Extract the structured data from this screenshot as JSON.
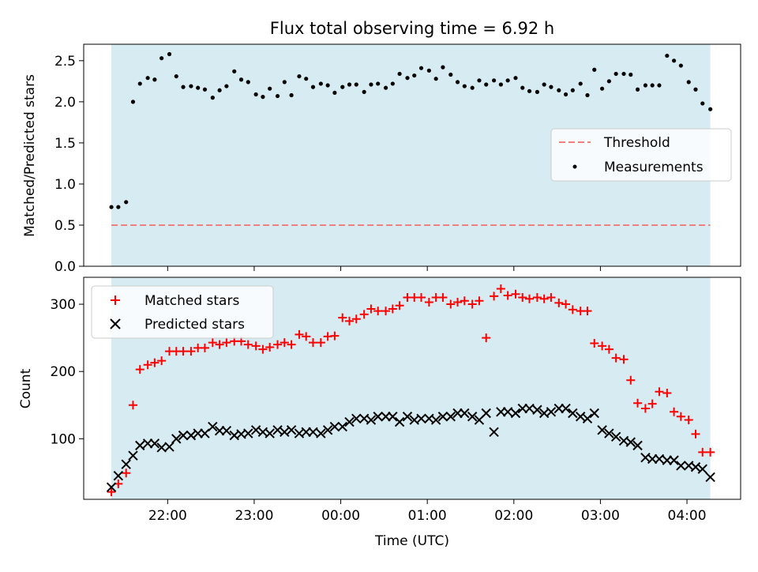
{
  "figure": {
    "title": "Flux total observing time = 6.92 h"
  },
  "chart_data": [
    {
      "type": "scatter",
      "ylabel": "Matched/Predicted stars",
      "xlabel": "",
      "ylim": [
        0,
        2.7
      ],
      "xlim_hours": [
        -2.97,
        4.62
      ],
      "yticks": [
        0.0,
        0.5,
        1.0,
        1.5,
        2.0,
        2.5
      ],
      "ytick_labels": [
        "0.0",
        "0.5",
        "1.0",
        "1.5",
        "2.0",
        "2.5"
      ],
      "shaded_span_hours": [
        -2.65,
        4.27
      ],
      "threshold": 0.5,
      "legend": {
        "position": "center-right",
        "threshold_label": "Threshold",
        "measurements_label": "Measurements"
      },
      "series": [
        {
          "name": "Measurements",
          "x": [
            -2.65,
            -2.57,
            -2.48,
            -2.4,
            -2.32,
            -2.23,
            -2.15,
            -2.07,
            -1.98,
            -1.9,
            -1.82,
            -1.73,
            -1.65,
            -1.57,
            -1.48,
            -1.4,
            -1.32,
            -1.23,
            -1.15,
            -1.07,
            -0.98,
            -0.9,
            -0.82,
            -0.73,
            -0.65,
            -0.57,
            -0.48,
            -0.4,
            -0.32,
            -0.23,
            -0.15,
            -0.07,
            0.02,
            0.1,
            0.18,
            0.27,
            0.35,
            0.43,
            0.52,
            0.6,
            0.68,
            0.77,
            0.85,
            0.93,
            1.02,
            1.1,
            1.18,
            1.27,
            1.35,
            1.43,
            1.52,
            1.6,
            1.68,
            1.77,
            1.85,
            1.93,
            2.02,
            2.1,
            2.18,
            2.27,
            2.35,
            2.43,
            2.52,
            2.6,
            2.68,
            2.77,
            2.85,
            2.93,
            3.02,
            3.1,
            3.18,
            3.27,
            3.35,
            3.43,
            3.52,
            3.6,
            3.68,
            3.77,
            3.85,
            3.93,
            4.02,
            4.1,
            4.18,
            4.27
          ],
          "y": [
            0.72,
            0.72,
            0.78,
            2.0,
            2.22,
            2.29,
            2.27,
            2.53,
            2.58,
            2.31,
            2.18,
            2.19,
            2.17,
            2.15,
            2.05,
            2.14,
            2.19,
            2.37,
            2.27,
            2.24,
            2.09,
            2.06,
            2.16,
            2.07,
            2.24,
            2.08,
            2.31,
            2.28,
            2.18,
            2.22,
            2.2,
            2.11,
            2.18,
            2.21,
            2.21,
            2.12,
            2.21,
            2.22,
            2.17,
            2.22,
            2.34,
            2.29,
            2.32,
            2.41,
            2.38,
            2.28,
            2.42,
            2.33,
            2.24,
            2.19,
            2.17,
            2.26,
            2.21,
            2.26,
            2.21,
            2.26,
            2.29,
            2.17,
            2.13,
            2.12,
            2.21,
            2.18,
            2.14,
            2.09,
            2.14,
            2.22,
            2.08,
            2.39,
            2.16,
            2.25,
            2.34,
            2.34,
            2.33,
            2.15,
            2.2,
            2.2,
            2.2,
            2.56,
            2.5,
            2.44,
            2.24,
            2.15,
            1.98,
            1.91
          ]
        }
      ]
    },
    {
      "type": "scatter",
      "ylabel": "Count",
      "xlabel": "Time (UTC)",
      "ylim": [
        10,
        340
      ],
      "xlim_hours": [
        -2.97,
        4.62
      ],
      "yticks": [
        100,
        200,
        300
      ],
      "ytick_labels": [
        "100",
        "200",
        "300"
      ],
      "xticks_hours": [
        -2,
        -1,
        0,
        1,
        2,
        3,
        4
      ],
      "xtick_labels": [
        "22:00",
        "23:00",
        "00:00",
        "01:00",
        "02:00",
        "03:00",
        "04:00"
      ],
      "shaded_span_hours": [
        -2.65,
        4.27
      ],
      "legend": {
        "position": "upper-left"
      },
      "series": [
        {
          "name": "Matched stars",
          "color": "#ff0000",
          "marker": "plus",
          "x": [
            -2.65,
            -2.57,
            -2.48,
            -2.4,
            -2.32,
            -2.23,
            -2.15,
            -2.07,
            -1.98,
            -1.9,
            -1.82,
            -1.73,
            -1.65,
            -1.57,
            -1.48,
            -1.4,
            -1.32,
            -1.23,
            -1.15,
            -1.07,
            -0.98,
            -0.9,
            -0.82,
            -0.73,
            -0.65,
            -0.57,
            -0.48,
            -0.4,
            -0.32,
            -0.23,
            -0.15,
            -0.07,
            0.02,
            0.1,
            0.18,
            0.27,
            0.35,
            0.43,
            0.52,
            0.6,
            0.68,
            0.77,
            0.85,
            0.93,
            1.02,
            1.1,
            1.18,
            1.27,
            1.35,
            1.43,
            1.52,
            1.6,
            1.68,
            1.77,
            1.85,
            1.93,
            2.02,
            2.1,
            2.18,
            2.27,
            2.35,
            2.43,
            2.52,
            2.6,
            2.68,
            2.77,
            2.85,
            2.93,
            3.02,
            3.1,
            3.18,
            3.27,
            3.35,
            3.43,
            3.52,
            3.6,
            3.68,
            3.77,
            3.85,
            3.93,
            4.02,
            4.1,
            4.18,
            4.27
          ],
          "y": [
            21,
            33,
            49,
            150,
            203,
            210,
            213,
            216,
            230,
            230,
            230,
            230,
            235,
            235,
            243,
            240,
            243,
            245,
            245,
            240,
            238,
            233,
            236,
            240,
            243,
            240,
            255,
            252,
            243,
            243,
            252,
            253,
            280,
            275,
            278,
            285,
            293,
            290,
            290,
            293,
            298,
            310,
            310,
            310,
            303,
            310,
            310,
            300,
            303,
            305,
            300,
            305,
            250,
            312,
            323,
            313,
            315,
            310,
            308,
            310,
            308,
            310,
            302,
            300,
            292,
            290,
            290,
            242,
            238,
            233,
            220,
            218,
            187,
            153,
            145,
            152,
            170,
            168,
            140,
            133,
            128,
            107,
            80,
            80
          ]
        },
        {
          "name": "Predicted stars",
          "color": "#000000",
          "marker": "x",
          "x": [
            -2.65,
            -2.57,
            -2.48,
            -2.4,
            -2.32,
            -2.23,
            -2.15,
            -2.07,
            -1.98,
            -1.9,
            -1.82,
            -1.73,
            -1.65,
            -1.57,
            -1.48,
            -1.4,
            -1.32,
            -1.23,
            -1.15,
            -1.07,
            -0.98,
            -0.9,
            -0.82,
            -0.73,
            -0.65,
            -0.57,
            -0.48,
            -0.4,
            -0.32,
            -0.23,
            -0.15,
            -0.07,
            0.02,
            0.1,
            0.18,
            0.27,
            0.35,
            0.43,
            0.52,
            0.6,
            0.68,
            0.77,
            0.85,
            0.93,
            1.02,
            1.1,
            1.18,
            1.27,
            1.35,
            1.43,
            1.52,
            1.6,
            1.68,
            1.77,
            1.85,
            1.93,
            2.02,
            2.1,
            2.18,
            2.27,
            2.35,
            2.43,
            2.52,
            2.6,
            2.68,
            2.77,
            2.85,
            2.93,
            3.02,
            3.1,
            3.18,
            3.27,
            3.35,
            3.43,
            3.52,
            3.6,
            3.68,
            3.77,
            3.85,
            3.93,
            4.02,
            4.1,
            4.18,
            4.27
          ],
          "y": [
            28,
            45,
            62,
            75,
            90,
            93,
            93,
            87,
            88,
            100,
            105,
            105,
            108,
            108,
            118,
            112,
            112,
            105,
            107,
            108,
            113,
            110,
            108,
            113,
            110,
            113,
            108,
            110,
            110,
            108,
            113,
            118,
            118,
            125,
            130,
            130,
            128,
            133,
            133,
            133,
            125,
            133,
            128,
            130,
            130,
            128,
            133,
            133,
            138,
            138,
            133,
            128,
            138,
            110,
            140,
            140,
            138,
            145,
            145,
            143,
            138,
            140,
            145,
            145,
            138,
            133,
            130,
            138,
            113,
            108,
            103,
            97,
            95,
            90,
            72,
            70,
            70,
            68,
            68,
            60,
            60,
            58,
            55,
            43
          ]
        }
      ]
    }
  ]
}
